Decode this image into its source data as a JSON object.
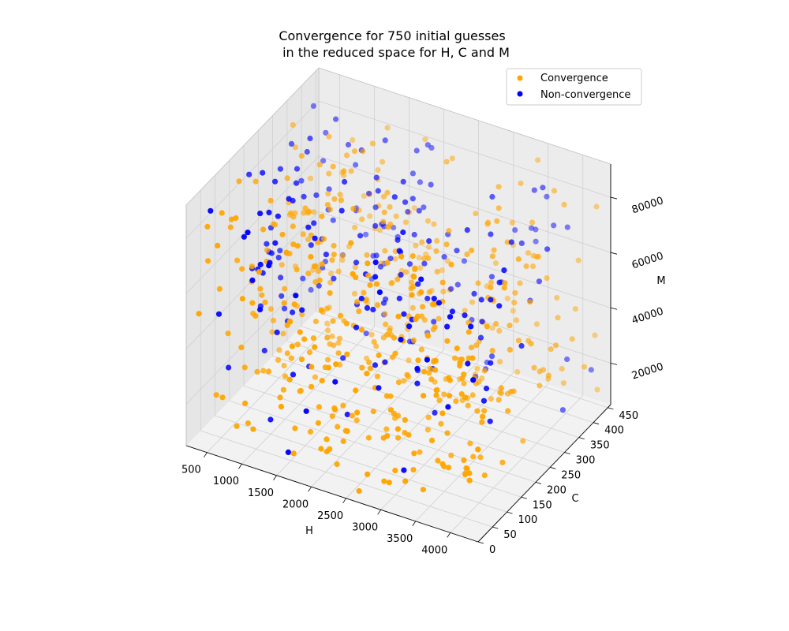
{
  "chart_data": {
    "type": "scatter",
    "title_lines": [
      "Convergence for 750 initial guesses",
      "in the reduced space for H, C and M"
    ],
    "xlabel": "H",
    "ylabel": "C",
    "zlabel": "M",
    "xlim": [
      200,
      4400
    ],
    "ylim": [
      0,
      460
    ],
    "zlim": [
      5000,
      92000
    ],
    "xticks": [
      500,
      1000,
      1500,
      2000,
      2500,
      3000,
      3500,
      4000
    ],
    "yticks": [
      0,
      50,
      100,
      150,
      200,
      250,
      300,
      350,
      400,
      450
    ],
    "zticks": [
      20000,
      40000,
      60000,
      80000
    ],
    "grid": true,
    "legend_position": "top-right",
    "series": [
      {
        "name": "Convergence",
        "color": "#ffa500",
        "points": []
      },
      {
        "name": "Non-convergence",
        "color": "#0000ff",
        "points": []
      }
    ]
  }
}
